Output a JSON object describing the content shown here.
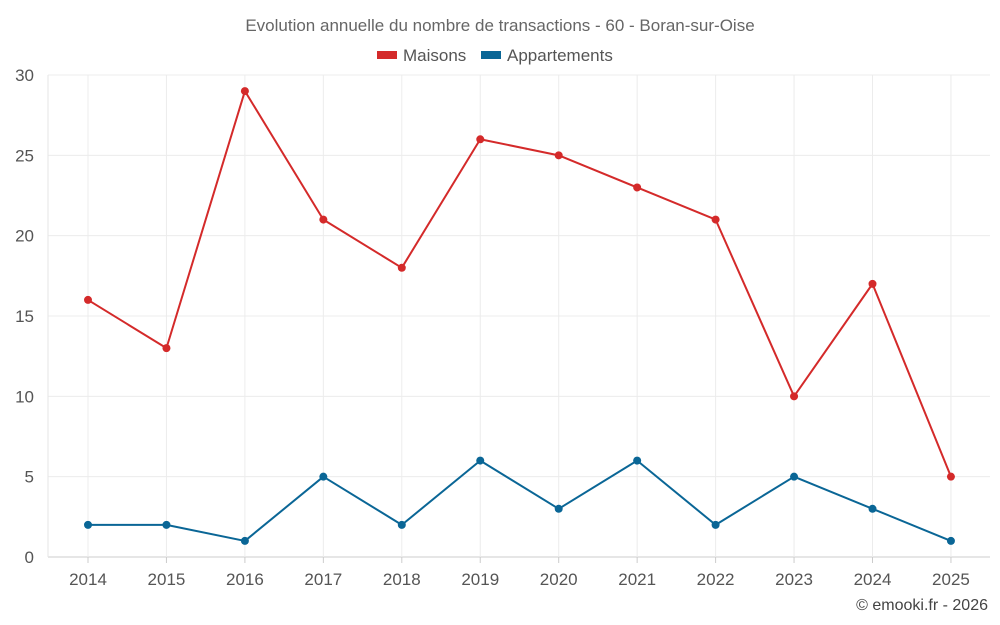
{
  "chart_data": {
    "type": "line",
    "title": "Evolution annuelle du nombre de transactions - 60 - Boran-sur-Oise",
    "categories": [
      "2014",
      "2015",
      "2016",
      "2017",
      "2018",
      "2019",
      "2020",
      "2021",
      "2022",
      "2023",
      "2024",
      "2025"
    ],
    "series": [
      {
        "name": "Maisons",
        "color": "#d42a2a",
        "values": [
          16,
          13,
          29,
          21,
          18,
          26,
          25,
          23,
          21,
          10,
          17,
          5
        ]
      },
      {
        "name": "Appartements",
        "color": "#0a6696",
        "values": [
          2,
          2,
          1,
          5,
          2,
          6,
          3,
          6,
          2,
          5,
          3,
          1
        ]
      }
    ],
    "ylim": [
      0,
      30
    ],
    "yticks": [
      0,
      5,
      10,
      15,
      20,
      25,
      30
    ],
    "xlabel": "",
    "ylabel": "",
    "grid": true,
    "legend": "top-center"
  },
  "credit": "© emooki.fr - 2026"
}
